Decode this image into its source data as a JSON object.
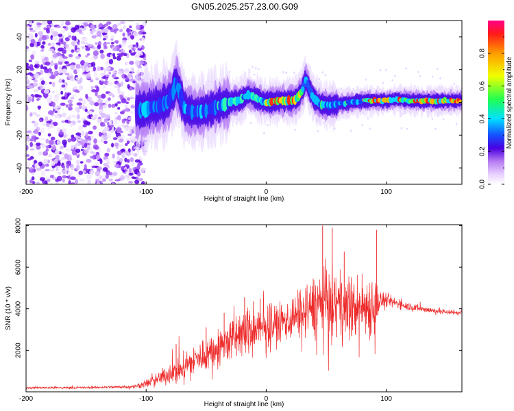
{
  "title": "GN05.2025.257.23.00.G09",
  "chart_data": [
    {
      "type": "heatmap",
      "name": "spectrogram",
      "xlabel": "Height of straight line (km)",
      "ylabel": "Frequency (Hz)",
      "xlim": [
        -200,
        163
      ],
      "ylim": [
        -50,
        50
      ],
      "xticks": [
        -200,
        -100,
        0,
        100
      ],
      "yticks": [
        -40,
        -20,
        0,
        20,
        40
      ],
      "xtick_labels": [
        "-200",
        "-100",
        "0",
        "100"
      ],
      "ytick_labels": [
        "-40",
        "-20",
        "0",
        "20",
        "40"
      ],
      "noise_region_x": [
        -200,
        -105
      ],
      "ridge": {
        "x": [
          -105,
          -95,
          -88,
          -82,
          -78,
          -75,
          -72,
          -68,
          -60,
          -50,
          -40,
          -30,
          -20,
          -15,
          -10,
          0,
          10,
          20,
          25,
          30,
          33,
          36,
          40,
          45,
          50,
          60,
          70,
          80,
          90,
          100,
          110,
          120,
          130,
          140,
          150,
          163
        ],
        "y": [
          -5,
          -3,
          -2,
          0,
          5,
          12,
          6,
          -4,
          -6,
          -5,
          -2,
          0,
          2,
          5,
          3,
          0,
          1,
          1,
          2,
          7,
          14,
          8,
          2,
          -1,
          -2,
          -1,
          0,
          1,
          1,
          1,
          2,
          1,
          1,
          1,
          1,
          1
        ]
      },
      "colorbar": {
        "label": "Normalized spectral amplitude",
        "range": [
          0,
          1
        ],
        "ticks": [
          0.0,
          0.2,
          0.4,
          0.6,
          0.8
        ],
        "tick_labels": [
          "0.0",
          "0.2",
          "0.4",
          "0.6",
          "0.8"
        ]
      }
    },
    {
      "type": "line",
      "name": "snr",
      "xlabel": "Height of straight line (km)",
      "ylabel": "SNR (10 * v/v)",
      "xlim": [
        -200,
        163
      ],
      "ylim": [
        0,
        8050
      ],
      "xticks": [
        -200,
        -100,
        0,
        100
      ],
      "yticks": [
        2000,
        4000,
        6000,
        8000
      ],
      "xtick_labels": [
        "-200",
        "-100",
        "0",
        "100"
      ],
      "ytick_labels": [
        "2000",
        "4000",
        "6000",
        "8000"
      ],
      "color": "#ee2b2b",
      "envelope": {
        "x": [
          -200,
          -150,
          -110,
          -100,
          -90,
          -80,
          -70,
          -60,
          -50,
          -40,
          -30,
          -20,
          -10,
          0,
          10,
          20,
          30,
          40,
          45,
          50,
          60,
          70,
          80,
          90,
          95,
          100,
          110,
          120,
          130,
          140,
          150,
          163
        ],
        "mean": [
          200,
          200,
          250,
          400,
          600,
          900,
          1100,
          1500,
          1800,
          2100,
          2500,
          2800,
          3000,
          3100,
          3300,
          3500,
          3800,
          4100,
          4300,
          4200,
          4100,
          4000,
          4100,
          4200,
          4400,
          4400,
          4250,
          4100,
          4000,
          3900,
          3850,
          3800
        ],
        "spread": [
          80,
          80,
          120,
          300,
          500,
          700,
          900,
          1100,
          1200,
          1300,
          1500,
          1600,
          1700,
          1500,
          1400,
          1500,
          1700,
          2200,
          2600,
          2600,
          2400,
          2200,
          2300,
          2400,
          700,
          500,
          350,
          300,
          250,
          220,
          200,
          180
        ]
      },
      "spikes": [
        {
          "x": -75,
          "y": 2300
        },
        {
          "x": -50,
          "y": 3100
        },
        {
          "x": -35,
          "y": 3800
        },
        {
          "x": -18,
          "y": 4550
        },
        {
          "x": -5,
          "y": 4500
        },
        {
          "x": 3,
          "y": 4250
        },
        {
          "x": 28,
          "y": 4800
        },
        {
          "x": 47,
          "y": 8000
        },
        {
          "x": 55,
          "y": 7900
        },
        {
          "x": 65,
          "y": 6750
        },
        {
          "x": 92,
          "y": 7800
        }
      ]
    }
  ]
}
